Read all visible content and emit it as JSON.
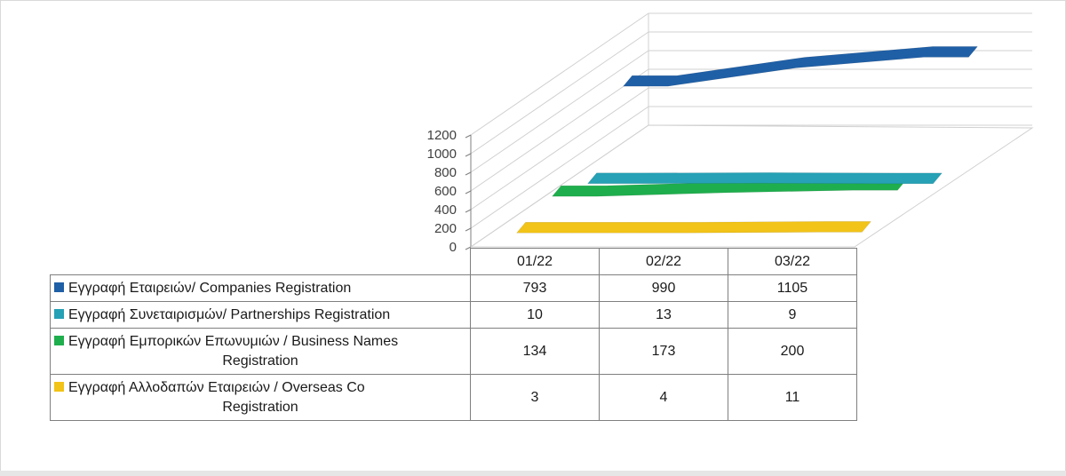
{
  "chart_data": {
    "type": "line",
    "title": "",
    "xlabel": "",
    "ylabel": "",
    "ylim": [
      0,
      1200
    ],
    "yticks": [
      0,
      200,
      400,
      600,
      800,
      1000,
      1200
    ],
    "categories": [
      "01/22",
      "02/22",
      "03/22"
    ],
    "series": [
      {
        "name": "Εγγραφή Εταιρειών/ Companies Registration",
        "color": "#1f5fa6",
        "values": [
          793,
          990,
          1105
        ]
      },
      {
        "name": "Εγγραφή Συνεταιρισμών/ Partnerships Registration",
        "color": "#26a1b5",
        "values": [
          10,
          13,
          9
        ]
      },
      {
        "name": "Εγγραφή Εμπορικών Επωνυμιών / Business Names Registration",
        "color": "#1fae4d",
        "values": [
          134,
          173,
          200
        ]
      },
      {
        "name": "Εγγραφή Αλλοδαπών Εταιρειών / Overseas Co Registration",
        "color": "#f2c318",
        "values": [
          3,
          4,
          11
        ]
      }
    ],
    "grid": true,
    "legend": "table-below"
  },
  "table": {
    "rows": [
      {
        "label_lines": [
          "Εγγραφή Εταιρειών/ Companies Registration"
        ],
        "values": [
          "793",
          "990",
          "1105"
        ]
      },
      {
        "label_lines": [
          "Εγγραφή Συνεταιρισμών/ Partnerships Registration"
        ],
        "values": [
          "10",
          "13",
          "9"
        ]
      },
      {
        "label_lines": [
          "Εγγραφή Εμπορικών Επωνυμιών / Business Names",
          "Registration"
        ],
        "values": [
          "134",
          "173",
          "200"
        ]
      },
      {
        "label_lines": [
          "Εγγραφή Αλλοδαπών Εταιρειών / Overseas Co",
          "Registration"
        ],
        "values": [
          "3",
          "4",
          "11"
        ]
      }
    ]
  },
  "colors": {
    "gridline": "#d0d0d0",
    "axis": "#7f7f7f"
  }
}
